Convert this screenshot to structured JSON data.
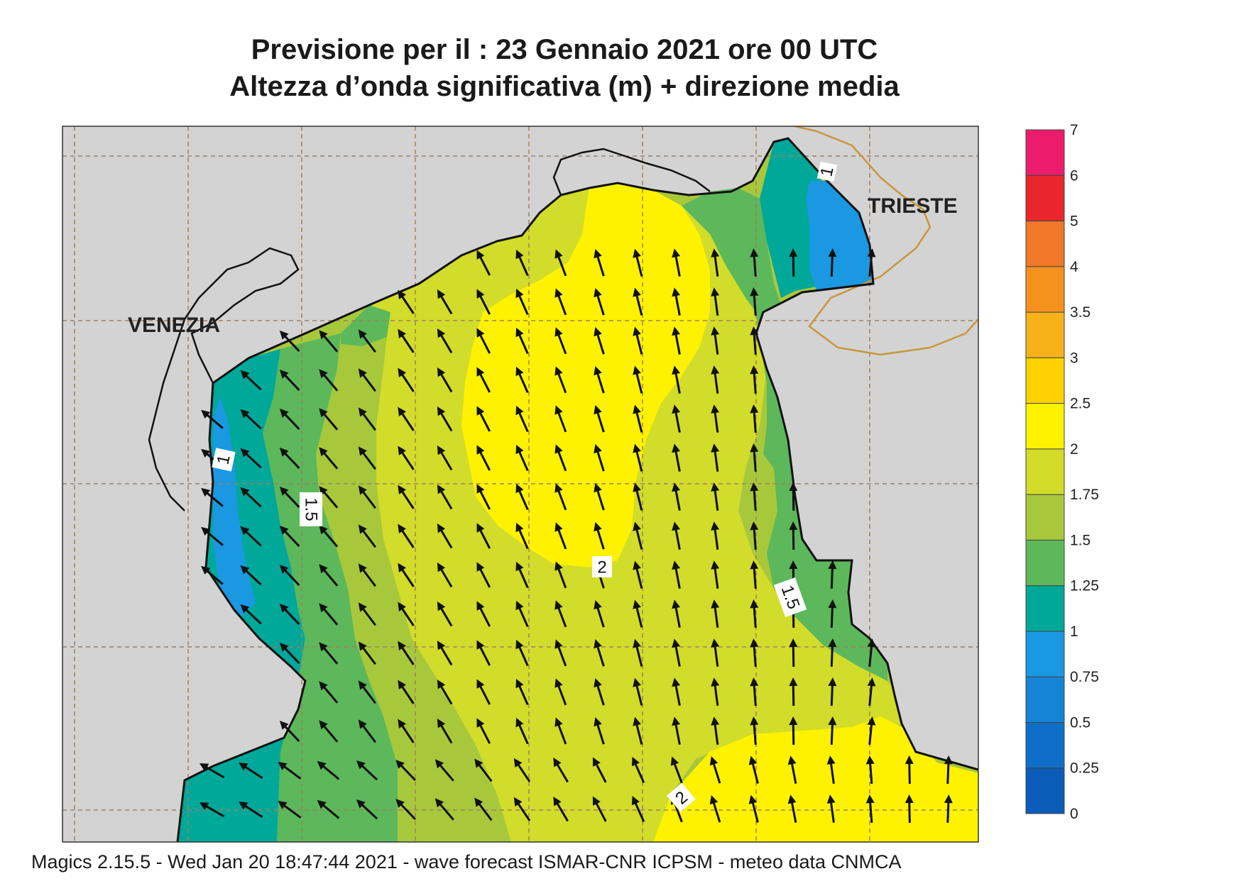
{
  "title": {
    "line1": "Previsione per il  :  23  Gennaio  2021   ore 00 UTC",
    "line2": "Altezza d’onda significativa (m) + direzione media"
  },
  "places": {
    "venezia": "VENEZIA",
    "trieste": "TRIESTE"
  },
  "contour_labels": [
    "1",
    "1",
    "1.5",
    "2",
    "1.5",
    "2"
  ],
  "colorbar": {
    "levels": [
      "0",
      "0.25",
      "0.5",
      "0.75",
      "1",
      "1.25",
      "1.5",
      "1.75",
      "2",
      "2.5",
      "3",
      "3.5",
      "4",
      "5",
      "6",
      "7"
    ],
    "colors": [
      "#0a5cb8",
      "#0f6fc8",
      "#1584d6",
      "#1a98e2",
      "#00a89a",
      "#5cb85a",
      "#a8c83c",
      "#d2dc2a",
      "#fff200",
      "#ffd200",
      "#f7b21a",
      "#f5921e",
      "#f07828",
      "#e8262c",
      "#ec1c6c"
    ]
  },
  "legend_colors": {
    "land": "#d3d3d3",
    "grid": "#a08060",
    "border": "#c8963c",
    "arrows": "#111111"
  },
  "footer": "Magics 2.15.5 - Wed Jan 20 18:47:44 2021 - wave forecast  ISMAR-CNR  ICPSM - meteo data   CNMCA"
}
